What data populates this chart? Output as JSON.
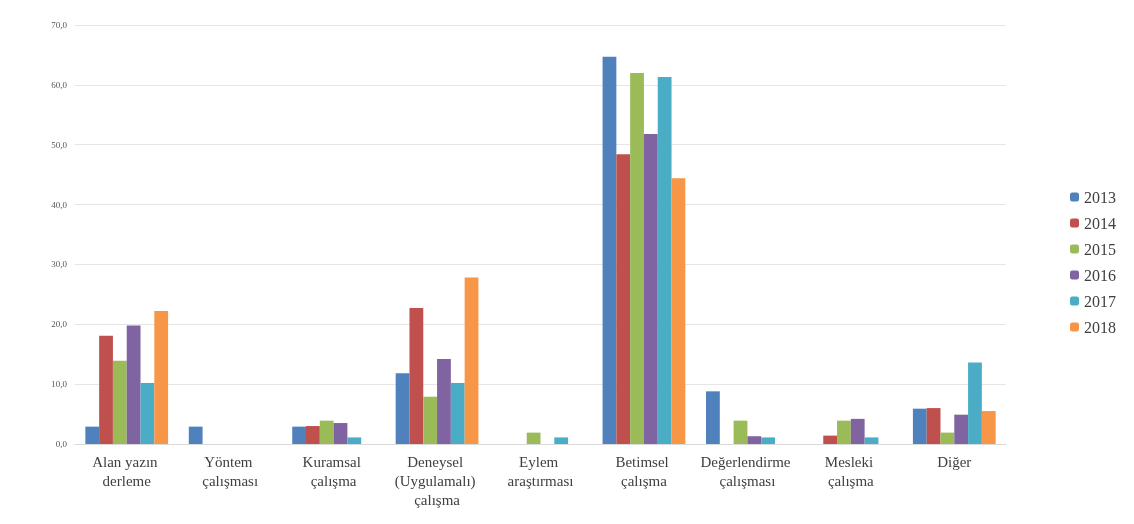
{
  "chart_data": {
    "type": "bar",
    "categories": [
      "Alan yazın derleme",
      "Yöntem çalışması",
      "Kuramsal çalışma",
      "Deneysel (Uygulamalı) çalışma",
      "Eylem araştırması",
      "Betimsel çalışma",
      "Değerlendirme çalışması",
      "Mesleki çalışma",
      "Diğer"
    ],
    "series": [
      {
        "name": "2013",
        "color": "#4f81bd",
        "values": [
          2.9,
          2.9,
          2.9,
          11.8,
          0,
          64.7,
          8.8,
          0,
          5.9
        ]
      },
      {
        "name": "2014",
        "color": "#c0504d",
        "values": [
          18.1,
          0,
          3.0,
          22.7,
          0,
          48.4,
          0,
          1.4,
          6.0
        ]
      },
      {
        "name": "2015",
        "color": "#9bbb59",
        "values": [
          13.9,
          0,
          3.9,
          7.9,
          1.9,
          62.0,
          3.9,
          3.9,
          1.9
        ]
      },
      {
        "name": "2016",
        "color": "#8064a2",
        "values": [
          19.8,
          0,
          3.5,
          14.2,
          0,
          51.8,
          1.3,
          4.2,
          4.9
        ]
      },
      {
        "name": "2017",
        "color": "#4bacc6",
        "values": [
          10.2,
          0,
          1.1,
          10.2,
          1.1,
          61.3,
          1.1,
          1.1,
          13.6
        ]
      },
      {
        "name": "2018",
        "color": "#f79646",
        "values": [
          22.2,
          0,
          0,
          27.8,
          0,
          44.4,
          0,
          0,
          5.5
        ]
      }
    ],
    "ylim": [
      0,
      70
    ],
    "yticks": [
      {
        "value": 0,
        "label": "0,0"
      },
      {
        "value": 10,
        "label": "10,0"
      },
      {
        "value": 20,
        "label": "20,0"
      },
      {
        "value": 30,
        "label": "30,0"
      },
      {
        "value": 40,
        "label": "40,0"
      },
      {
        "value": 50,
        "label": "50,0"
      },
      {
        "value": 60,
        "label": "60,0"
      },
      {
        "value": 70,
        "label": "70,0"
      }
    ],
    "grid": "y",
    "legend": "right"
  }
}
